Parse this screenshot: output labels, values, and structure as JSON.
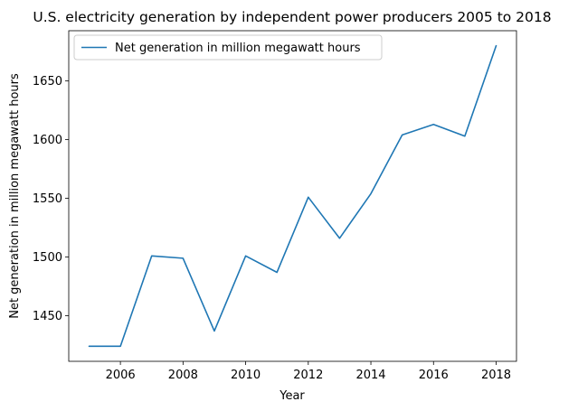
{
  "chart_data": {
    "type": "line",
    "title": "U.S. electricity generation by independent power producers 2005 to 2018",
    "xlabel": "Year",
    "ylabel": "Net generation in million megawatt hours",
    "x": [
      2005,
      2006,
      2007,
      2008,
      2009,
      2010,
      2011,
      2012,
      2013,
      2014,
      2015,
      2016,
      2017,
      2018
    ],
    "series": [
      {
        "name": "Net generation in million megawatt hours",
        "color": "#1f77b4",
        "values": [
          1424,
          1424,
          1501,
          1499,
          1437,
          1501,
          1487,
          1551,
          1516,
          1554,
          1604,
          1613,
          1603,
          1680
        ]
      }
    ],
    "xlim": [
      2004.35,
      2018.65
    ],
    "ylim": [
      1411.2,
      1692.8
    ],
    "xticks": [
      2006,
      2008,
      2010,
      2012,
      2014,
      2016,
      2018
    ],
    "yticks": [
      1450,
      1500,
      1550,
      1600,
      1650
    ],
    "grid": false,
    "legend_position": "top-left"
  }
}
